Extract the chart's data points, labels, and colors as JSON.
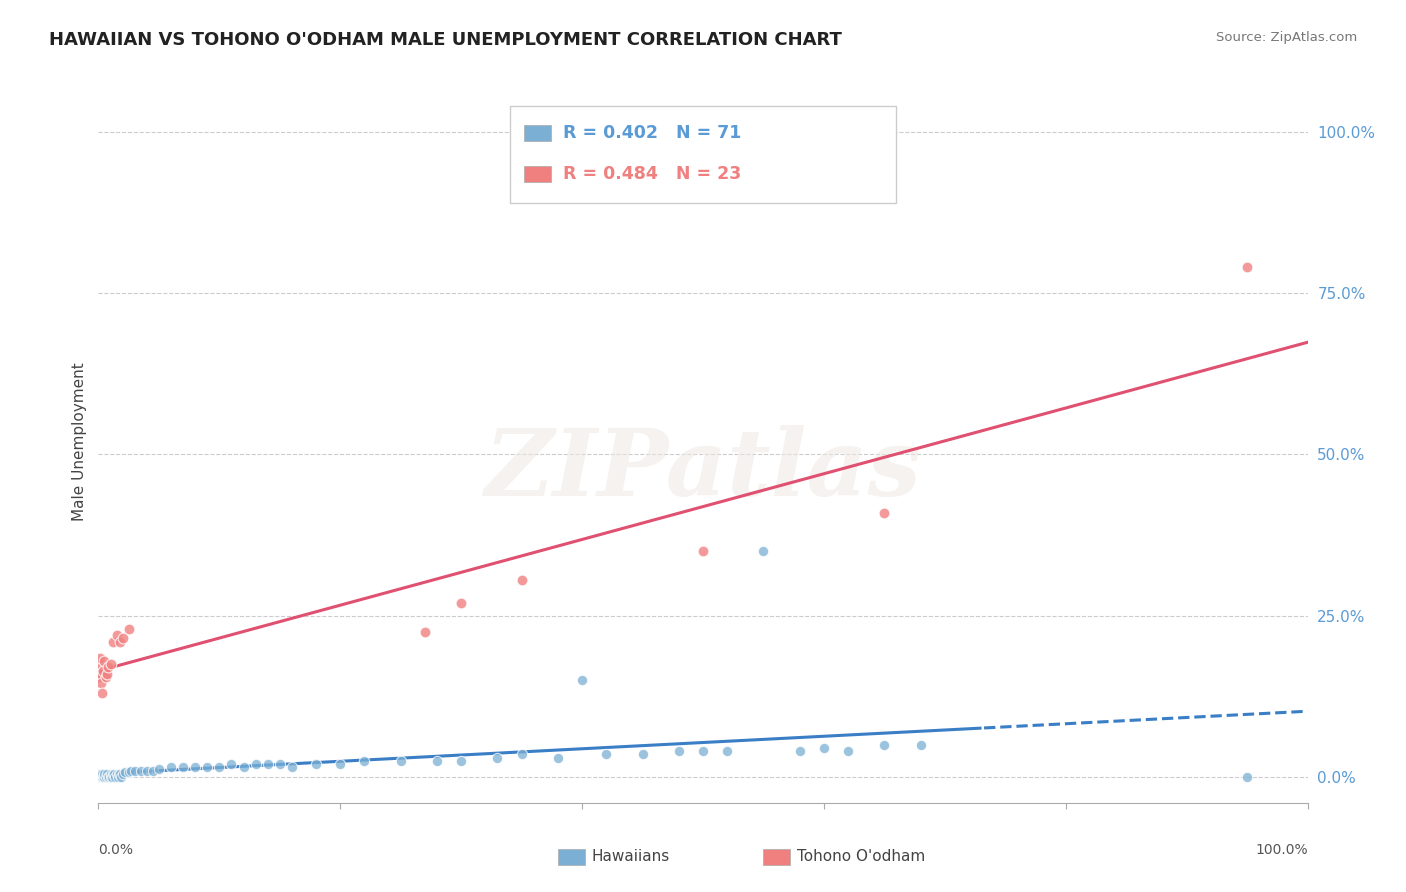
{
  "title": "HAWAIIAN VS TOHONO O'ODHAM MALE UNEMPLOYMENT CORRELATION CHART",
  "source": "Source: ZipAtlas.com",
  "ylabel": "Male Unemployment",
  "watermark_text": "ZIPatlas",
  "legend_entries": [
    {
      "label": "Hawaiians",
      "R": "0.402",
      "N": "71",
      "color": "#7BAFD4"
    },
    {
      "label": "Tohono O'odham",
      "R": "0.484",
      "N": "23",
      "color": "#F08080"
    }
  ],
  "ytick_labels": [
    "0.0%",
    "25.0%",
    "50.0%",
    "75.0%",
    "100.0%"
  ],
  "ytick_values": [
    0.0,
    0.25,
    0.5,
    0.75,
    1.0
  ],
  "xlim": [
    0.0,
    1.0
  ],
  "ylim": [
    -0.04,
    1.08
  ],
  "background_color": "#FFFFFF",
  "grid_color": "#CCCCCC",
  "hawaiian_color": "#7BAFD4",
  "tohono_color": "#F08080",
  "hawaiian_line_color": "#3A7EC6",
  "tohono_line_color": "#E05070",
  "right_tick_color": "#5B9BD5",
  "haw_x": [
    0.0,
    0.0,
    0.0,
    0.001,
    0.001,
    0.001,
    0.002,
    0.002,
    0.002,
    0.003,
    0.003,
    0.004,
    0.005,
    0.005,
    0.006,
    0.007,
    0.008,
    0.009,
    0.01,
    0.01,
    0.011,
    0.012,
    0.013,
    0.014,
    0.015,
    0.016,
    0.017,
    0.018,
    0.019,
    0.02,
    0.022,
    0.025,
    0.027,
    0.03,
    0.035,
    0.04,
    0.045,
    0.05,
    0.06,
    0.07,
    0.08,
    0.09,
    0.1,
    0.11,
    0.12,
    0.13,
    0.14,
    0.15,
    0.16,
    0.18,
    0.2,
    0.22,
    0.25,
    0.28,
    0.3,
    0.33,
    0.35,
    0.38,
    0.4,
    0.42,
    0.45,
    0.48,
    0.5,
    0.52,
    0.55,
    0.58,
    0.6,
    0.62,
    0.65,
    0.68,
    0.95
  ],
  "haw_y": [
    0.0,
    0.005,
    0.0,
    0.0,
    0.0,
    0.005,
    0.0,
    0.005,
    0.0,
    0.0,
    0.005,
    0.0,
    0.0,
    0.005,
    0.0,
    0.005,
    0.0,
    0.0,
    0.0,
    0.005,
    0.0,
    0.005,
    0.005,
    0.0,
    0.005,
    0.0,
    0.005,
    0.005,
    0.0,
    0.005,
    0.008,
    0.008,
    0.01,
    0.01,
    0.01,
    0.01,
    0.01,
    0.012,
    0.015,
    0.015,
    0.015,
    0.015,
    0.015,
    0.02,
    0.015,
    0.02,
    0.02,
    0.02,
    0.015,
    0.02,
    0.02,
    0.025,
    0.025,
    0.025,
    0.025,
    0.03,
    0.035,
    0.03,
    0.15,
    0.035,
    0.035,
    0.04,
    0.04,
    0.04,
    0.35,
    0.04,
    0.045,
    0.04,
    0.05,
    0.05,
    0.0
  ],
  "toh_x": [
    0.0,
    0.0,
    0.001,
    0.001,
    0.002,
    0.003,
    0.004,
    0.005,
    0.006,
    0.007,
    0.008,
    0.01,
    0.012,
    0.015,
    0.018,
    0.02,
    0.025,
    0.27,
    0.3,
    0.35,
    0.5,
    0.65,
    0.95
  ],
  "toh_y": [
    0.155,
    0.175,
    0.16,
    0.185,
    0.145,
    0.13,
    0.165,
    0.18,
    0.155,
    0.16,
    0.17,
    0.175,
    0.21,
    0.22,
    0.21,
    0.215,
    0.23,
    0.225,
    0.27,
    0.305,
    0.35,
    0.41,
    0.79
  ],
  "haw_line_x_solid_end": 0.75,
  "haw_line_slope": 0.18,
  "haw_line_intercept": 0.01,
  "toh_line_slope": 0.55,
  "toh_line_intercept": 0.15
}
